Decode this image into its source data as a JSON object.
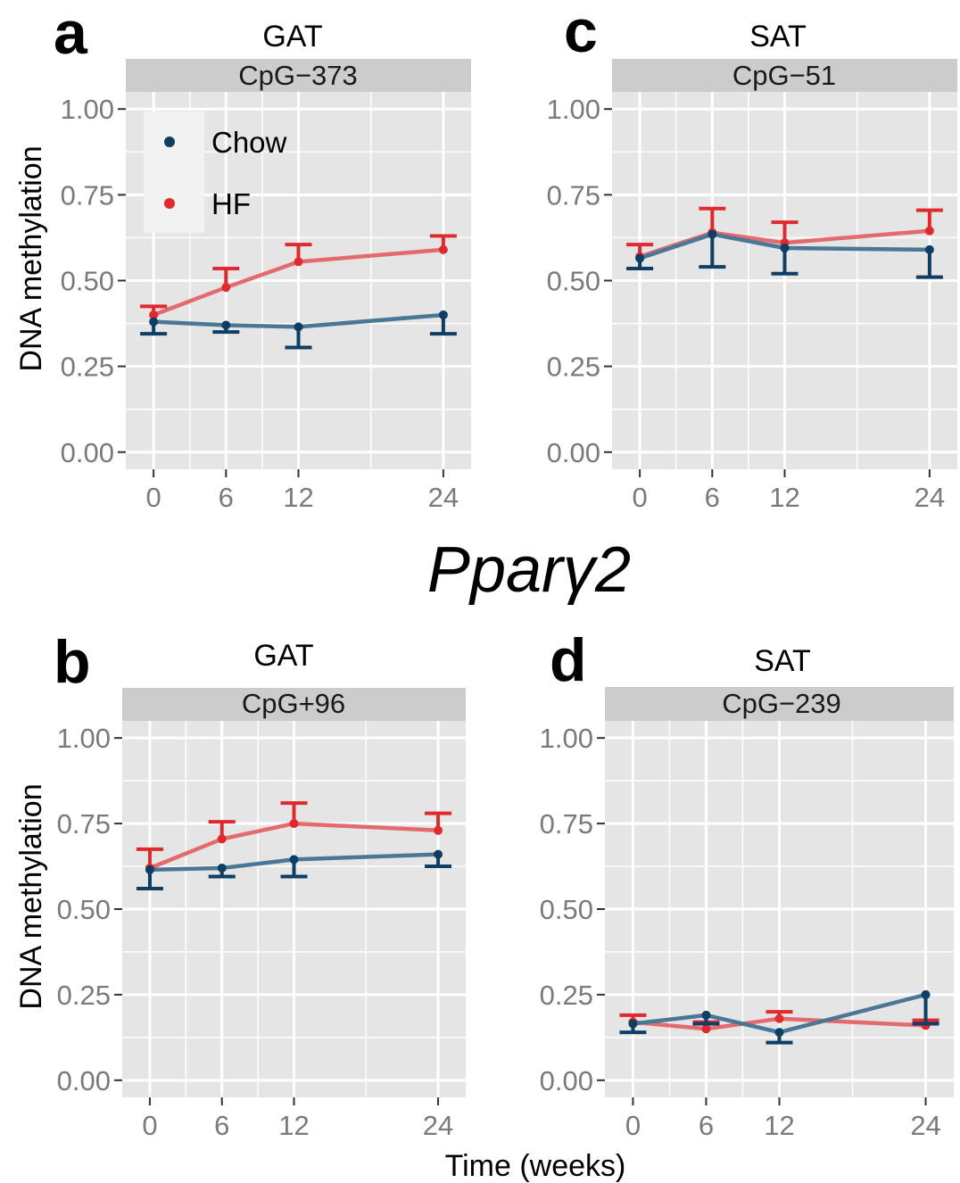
{
  "figure": {
    "gene_label": "Pparγ2",
    "x_axis_title": "Time (weeks)",
    "y_axis_title": "DNA methylation"
  },
  "legend": {
    "items": [
      {
        "label": "Chow",
        "color": "#0e3e63"
      },
      {
        "label": "HF",
        "color": "#e02a2e"
      }
    ]
  },
  "colors": {
    "chow_point": "#0e3e63",
    "chow_line": "#4a7795",
    "hf_point": "#e02a2e",
    "hf_line": "#e36b6e",
    "panel_bg": "#e5e5e5",
    "strip_bg": "#cccccc",
    "grid": "#ffffff"
  },
  "chart_data": [
    {
      "panel": "a",
      "type": "line",
      "tissue": "GAT",
      "site": "CpG−373",
      "x": [
        0,
        6,
        12,
        24
      ],
      "x_ticks": [
        "0",
        "6",
        "12",
        "24"
      ],
      "y_ticks": [
        "0.00",
        "0.25",
        "0.50",
        "0.75",
        "1.00"
      ],
      "xlim": [
        -2.3,
        26.3
      ],
      "ylim": [
        -0.05,
        1.05
      ],
      "series": [
        {
          "name": "Chow",
          "values": [
            0.38,
            0.37,
            0.365,
            0.4
          ],
          "err": [
            0.035,
            0.02,
            0.06,
            0.055
          ]
        },
        {
          "name": "HF",
          "values": [
            0.4,
            0.48,
            0.555,
            0.59
          ],
          "err": [
            0.025,
            0.055,
            0.05,
            0.04
          ]
        }
      ]
    },
    {
      "panel": "c",
      "type": "line",
      "tissue": "SAT",
      "site": "CpG−51",
      "x": [
        0,
        6,
        12,
        24
      ],
      "x_ticks": [
        "0",
        "6",
        "12",
        "24"
      ],
      "y_ticks": [
        "0.00",
        "0.25",
        "0.50",
        "0.75",
        "1.00"
      ],
      "xlim": [
        -2.3,
        26.3
      ],
      "ylim": [
        -0.05,
        1.05
      ],
      "series": [
        {
          "name": "Chow",
          "values": [
            0.565,
            0.635,
            0.595,
            0.59
          ],
          "err": [
            0.03,
            0.095,
            0.075,
            0.08
          ]
        },
        {
          "name": "HF",
          "values": [
            0.57,
            0.64,
            0.61,
            0.645
          ],
          "err": [
            0.035,
            0.07,
            0.06,
            0.06
          ]
        }
      ]
    },
    {
      "panel": "b",
      "type": "line",
      "tissue": "GAT",
      "site": "CpG+96",
      "x": [
        0,
        6,
        12,
        24
      ],
      "x_ticks": [
        "0",
        "6",
        "12",
        "24"
      ],
      "y_ticks": [
        "0.00",
        "0.25",
        "0.50",
        "0.75",
        "1.00"
      ],
      "xlim": [
        -2.3,
        26.3
      ],
      "ylim": [
        -0.05,
        1.05
      ],
      "series": [
        {
          "name": "Chow",
          "values": [
            0.615,
            0.62,
            0.645,
            0.66
          ],
          "err": [
            0.055,
            0.025,
            0.05,
            0.035
          ]
        },
        {
          "name": "HF",
          "values": [
            0.62,
            0.705,
            0.75,
            0.73
          ],
          "err": [
            0.055,
            0.05,
            0.06,
            0.05
          ]
        }
      ]
    },
    {
      "panel": "d",
      "type": "line",
      "tissue": "SAT",
      "site": "CpG−239",
      "x": [
        0,
        6,
        12,
        24
      ],
      "x_ticks": [
        "0",
        "6",
        "12",
        "24"
      ],
      "y_ticks": [
        "0.00",
        "0.25",
        "0.50",
        "0.75",
        "1.00"
      ],
      "xlim": [
        -2.3,
        26.3
      ],
      "ylim": [
        -0.05,
        1.05
      ],
      "series": [
        {
          "name": "Chow",
          "values": [
            0.165,
            0.19,
            0.14,
            0.25
          ],
          "err": [
            0.025,
            0.025,
            0.03,
            0.085
          ]
        },
        {
          "name": "HF",
          "values": [
            0.17,
            0.15,
            0.18,
            0.16
          ],
          "err": [
            0.02,
            0.02,
            0.02,
            0.015
          ]
        }
      ]
    }
  ]
}
